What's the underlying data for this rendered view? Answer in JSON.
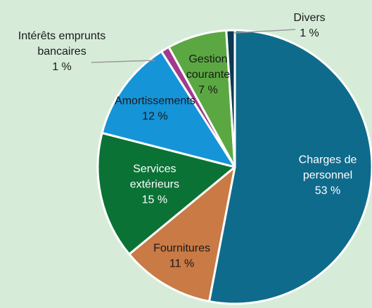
{
  "chart_data": {
    "type": "pie",
    "title": "",
    "start": "top",
    "direction": "clockwise",
    "slices": [
      {
        "label": "Charges de personnel",
        "value": 53,
        "value_text": "53 %",
        "color": "#0f6b8c",
        "label_color": "#ffffff",
        "lines": [
          "Charges de",
          "personnel"
        ]
      },
      {
        "label": "Fournitures",
        "value": 11,
        "value_text": "11 %",
        "color": "#c97a45",
        "label_color": "#1a1a1a",
        "lines": [
          "Fournitures"
        ]
      },
      {
        "label": "Services extérieurs",
        "value": 15,
        "value_text": "15 %",
        "color": "#0b7236",
        "label_color": "#ffffff",
        "lines": [
          "Services",
          "extérieurs"
        ]
      },
      {
        "label": "Amortissements",
        "value": 12,
        "value_text": "12 %",
        "color": "#1594d8",
        "label_color": "#1a1a1a",
        "lines": [
          "Amortissements"
        ]
      },
      {
        "label": "Intérêts emprunts bancaires",
        "value": 1,
        "value_text": "1 %",
        "color": "#a13a8c",
        "label_color": "#1a1a1a",
        "lines": [
          "Intérêts emprunts",
          "bancaires"
        ]
      },
      {
        "label": "Gestion courante",
        "value": 7,
        "value_text": "7 %",
        "color": "#5ba843",
        "label_color": "#1a1a1a",
        "lines": [
          "Gestion",
          "courante"
        ]
      },
      {
        "label": "Divers",
        "value": 1,
        "value_text": "1 %",
        "color": "#0b3a52",
        "label_color": "#1a1a1a",
        "lines": [
          "Divers"
        ]
      }
    ]
  }
}
